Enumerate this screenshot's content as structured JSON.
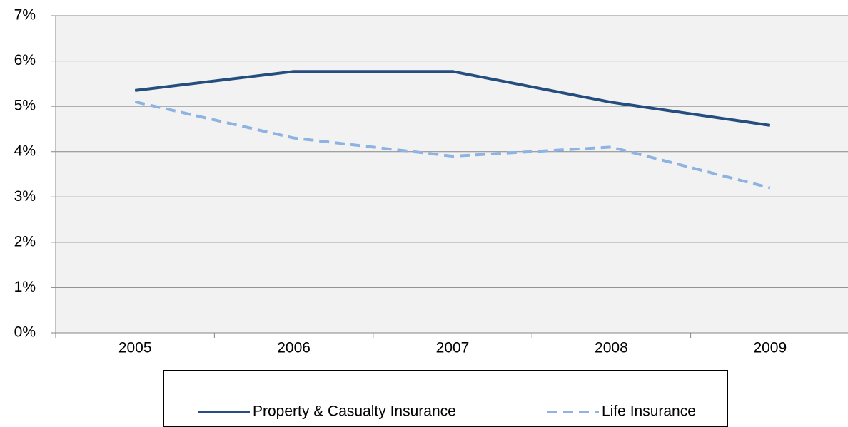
{
  "chart_data": {
    "type": "line",
    "categories": [
      "2005",
      "2006",
      "2007",
      "2008",
      "2009"
    ],
    "series": [
      {
        "name": "Property & Casualty Insurance",
        "color": "#254e7f",
        "dash": false,
        "values": [
          5.35,
          5.77,
          5.77,
          5.09,
          4.58
        ]
      },
      {
        "name": "Life Insurance",
        "color": "#8db3e2",
        "dash": true,
        "values": [
          5.1,
          4.3,
          3.9,
          4.1,
          3.2
        ]
      }
    ],
    "ylim": [
      0,
      7
    ],
    "yticks": [
      {
        "value": 0,
        "label": "0%"
      },
      {
        "value": 1,
        "label": "1%"
      },
      {
        "value": 2,
        "label": "2%"
      },
      {
        "value": 3,
        "label": "3%"
      },
      {
        "value": 4,
        "label": "4%"
      },
      {
        "value": 5,
        "label": "5%"
      },
      {
        "value": 6,
        "label": "6%"
      },
      {
        "value": 7,
        "label": "7%"
      }
    ],
    "grid": true,
    "legend": "bottom"
  }
}
